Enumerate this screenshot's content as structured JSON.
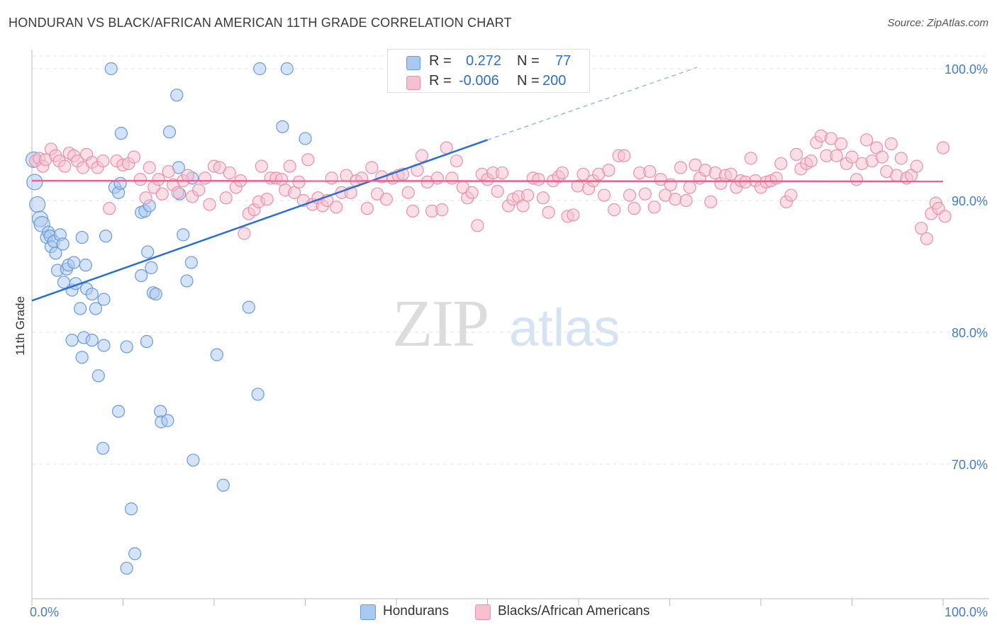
{
  "title": "HONDURAN VS BLACK/AFRICAN AMERICAN 11TH GRADE CORRELATION CHART",
  "source": "Source: ZipAtlas.com",
  "watermark": {
    "zip": "ZIP",
    "atlas": "atlas"
  },
  "legend": {
    "rows": [
      {
        "r_label": "R =",
        "r_value": "0.272",
        "n_label": "N =",
        "n_value": "77",
        "color": "#aac8f0",
        "border": "#6a9bd8"
      },
      {
        "r_label": "R =",
        "r_value": "-0.006",
        "n_label": "N =",
        "n_value": "200",
        "color": "#f7bfd0",
        "border": "#e890ad"
      }
    ]
  },
  "bottom_legend": [
    {
      "label": "Hondurans",
      "color": "#aac8f0",
      "border": "#6a9bd8"
    },
    {
      "label": "Blacks/African Americans",
      "color": "#f7bfd0",
      "border": "#e890ad"
    }
  ],
  "chart_data": {
    "type": "scatter",
    "title": "HONDURAN VS BLACK/AFRICAN AMERICAN 11TH GRADE CORRELATION CHART",
    "xlabel": "",
    "ylabel": "11th Grade",
    "xlim": [
      0,
      100
    ],
    "ylim": [
      61,
      101
    ],
    "x_tick_labels": [
      "0.0%",
      "100.0%"
    ],
    "y_ticks": [
      70,
      80,
      90,
      100
    ],
    "y_tick_labels": [
      "70.0%",
      "80.0%",
      "90.0%",
      "100.0%"
    ],
    "grid": true,
    "series": [
      {
        "name": "Hondurans",
        "color": "#aac8f0",
        "stroke": "#6a9bd8",
        "trend": {
          "x": [
            0,
            50
          ],
          "y": [
            82.4,
            94.6
          ],
          "dashed_to": [
            73,
            100.1
          ],
          "color": "#2a6fd0"
        },
        "points": [
          [
            0.2,
            93.1
          ],
          [
            0.3,
            91.4
          ],
          [
            0.6,
            89.7
          ],
          [
            0.9,
            88.6
          ],
          [
            1.1,
            88.2
          ],
          [
            1.6,
            87.2
          ],
          [
            1.8,
            87.6
          ],
          [
            2.0,
            87.3
          ],
          [
            2.1,
            86.5
          ],
          [
            2.4,
            86.9
          ],
          [
            2.6,
            86.0
          ],
          [
            3.1,
            87.4
          ],
          [
            3.4,
            86.7
          ],
          [
            2.8,
            84.7
          ],
          [
            3.8,
            84.8
          ],
          [
            4.0,
            85.1
          ],
          [
            4.6,
            85.3
          ],
          [
            4.4,
            83.2
          ],
          [
            3.5,
            83.8
          ],
          [
            4.8,
            83.7
          ],
          [
            6.0,
            83.3
          ],
          [
            5.5,
            87.2
          ],
          [
            5.9,
            85.1
          ],
          [
            5.3,
            81.8
          ],
          [
            7.0,
            81.8
          ],
          [
            7.9,
            82.5
          ],
          [
            6.6,
            82.9
          ],
          [
            8.1,
            87.3
          ],
          [
            9.1,
            91.0
          ],
          [
            9.5,
            90.6
          ],
          [
            9.7,
            91.3
          ],
          [
            9.8,
            95.1
          ],
          [
            8.7,
            100.0
          ],
          [
            12.0,
            89.1
          ],
          [
            12.4,
            89.2
          ],
          [
            12.9,
            89.6
          ],
          [
            12.7,
            86.1
          ],
          [
            12.0,
            84.3
          ],
          [
            13.1,
            84.9
          ],
          [
            13.3,
            83.0
          ],
          [
            13.6,
            82.9
          ],
          [
            15.1,
            95.2
          ],
          [
            15.9,
            98.0
          ],
          [
            16.1,
            92.5
          ],
          [
            16.2,
            90.5
          ],
          [
            16.6,
            87.4
          ],
          [
            17.0,
            83.9
          ],
          [
            17.5,
            85.3
          ],
          [
            17.6,
            91.7
          ],
          [
            25.0,
            100.0
          ],
          [
            28.0,
            100.0
          ],
          [
            27.5,
            95.6
          ],
          [
            30.0,
            94.7
          ],
          [
            23.8,
            81.9
          ],
          [
            24.8,
            75.3
          ],
          [
            20.3,
            78.3
          ],
          [
            4.4,
            79.4
          ],
          [
            5.7,
            79.6
          ],
          [
            6.6,
            79.4
          ],
          [
            5.5,
            78.1
          ],
          [
            7.9,
            79.0
          ],
          [
            10.4,
            78.9
          ],
          [
            12.6,
            79.3
          ],
          [
            7.3,
            76.7
          ],
          [
            9.5,
            74.0
          ],
          [
            14.1,
            74.0
          ],
          [
            14.2,
            73.2
          ],
          [
            14.9,
            73.3
          ],
          [
            7.8,
            71.2
          ],
          [
            17.7,
            70.3
          ],
          [
            21.0,
            68.4
          ],
          [
            10.9,
            66.6
          ],
          [
            11.3,
            63.2
          ],
          [
            10.4,
            62.1
          ]
        ]
      },
      {
        "name": "Blacks/African Americans",
        "color": "#f7bfd0",
        "stroke": "#e890ad",
        "trend": {
          "x": [
            0,
            100
          ],
          "y": [
            91.5,
            91.45
          ],
          "color": "#e8628e"
        },
        "points": [
          [
            0.4,
            93.0
          ],
          [
            0.8,
            93.2
          ],
          [
            1.2,
            92.6
          ],
          [
            1.5,
            93.1
          ],
          [
            2.1,
            93.9
          ],
          [
            2.6,
            93.4
          ],
          [
            3.0,
            93.0
          ],
          [
            3.6,
            92.6
          ],
          [
            4.1,
            93.6
          ],
          [
            4.6,
            93.4
          ],
          [
            5.0,
            93.0
          ],
          [
            5.6,
            92.5
          ],
          [
            6.0,
            93.5
          ],
          [
            6.6,
            92.9
          ],
          [
            7.2,
            92.5
          ],
          [
            7.8,
            93.0
          ],
          [
            8.5,
            89.4
          ],
          [
            9.3,
            93.0
          ],
          [
            10.0,
            92.7
          ],
          [
            10.6,
            92.8
          ],
          [
            11.2,
            93.3
          ],
          [
            11.9,
            91.6
          ],
          [
            12.5,
            90.2
          ],
          [
            12.9,
            92.5
          ],
          [
            13.4,
            91.0
          ],
          [
            13.9,
            91.6
          ],
          [
            14.3,
            90.5
          ],
          [
            15.0,
            92.2
          ],
          [
            15.5,
            91.2
          ],
          [
            16.0,
            90.6
          ],
          [
            16.6,
            91.5
          ],
          [
            17.1,
            91.9
          ],
          [
            17.6,
            90.3
          ],
          [
            18.3,
            90.8
          ],
          [
            19.0,
            91.7
          ],
          [
            19.5,
            89.7
          ],
          [
            20.0,
            92.6
          ],
          [
            20.6,
            92.5
          ],
          [
            21.3,
            90.2
          ],
          [
            21.7,
            92.1
          ],
          [
            22.4,
            91.0
          ],
          [
            22.9,
            91.5
          ],
          [
            23.3,
            87.5
          ],
          [
            23.8,
            89.0
          ],
          [
            24.4,
            89.3
          ],
          [
            24.9,
            89.9
          ],
          [
            25.2,
            92.6
          ],
          [
            25.8,
            90.1
          ],
          [
            26.2,
            91.7
          ],
          [
            26.8,
            91.7
          ],
          [
            27.4,
            91.6
          ],
          [
            27.8,
            90.8
          ],
          [
            28.3,
            92.6
          ],
          [
            28.8,
            90.6
          ],
          [
            29.3,
            91.4
          ],
          [
            29.8,
            90.0
          ],
          [
            30.3,
            93.1
          ],
          [
            30.8,
            89.7
          ],
          [
            31.4,
            90.2
          ],
          [
            31.9,
            89.6
          ],
          [
            32.4,
            90.0
          ],
          [
            32.9,
            91.7
          ],
          [
            33.4,
            89.5
          ],
          [
            34.0,
            90.6
          ],
          [
            34.5,
            91.9
          ],
          [
            35.0,
            90.6
          ],
          [
            35.6,
            91.5
          ],
          [
            36.2,
            91.7
          ],
          [
            36.8,
            89.4
          ],
          [
            37.3,
            92.5
          ],
          [
            37.9,
            90.5
          ],
          [
            38.4,
            91.8
          ],
          [
            38.9,
            90.1
          ],
          [
            39.6,
            91.7
          ],
          [
            40.2,
            91.9
          ],
          [
            40.7,
            92.0
          ],
          [
            41.3,
            90.6
          ],
          [
            41.8,
            89.2
          ],
          [
            42.3,
            92.3
          ],
          [
            42.8,
            93.4
          ],
          [
            43.4,
            91.4
          ],
          [
            43.9,
            89.2
          ],
          [
            44.5,
            91.7
          ],
          [
            45.0,
            89.3
          ],
          [
            45.5,
            94.0
          ],
          [
            46.1,
            91.7
          ],
          [
            46.6,
            93.0
          ],
          [
            47.3,
            91.0
          ],
          [
            47.8,
            90.2
          ],
          [
            48.3,
            90.6
          ],
          [
            48.9,
            88.1
          ],
          [
            49.4,
            92.0
          ],
          [
            50.0,
            91.6
          ],
          [
            50.6,
            92.1
          ],
          [
            51.1,
            90.7
          ],
          [
            51.6,
            92.1
          ],
          [
            52.3,
            89.6
          ],
          [
            52.8,
            90.1
          ],
          [
            53.4,
            90.3
          ],
          [
            53.9,
            89.6
          ],
          [
            54.4,
            90.4
          ],
          [
            55.0,
            91.7
          ],
          [
            55.6,
            91.6
          ],
          [
            56.1,
            90.2
          ],
          [
            56.7,
            89.1
          ],
          [
            57.2,
            91.5
          ],
          [
            57.8,
            91.8
          ],
          [
            58.2,
            92.1
          ],
          [
            58.8,
            88.8
          ],
          [
            59.4,
            88.9
          ],
          [
            59.9,
            91.1
          ],
          [
            60.5,
            92.0
          ],
          [
            61.1,
            90.9
          ],
          [
            61.6,
            91.5
          ],
          [
            62.2,
            92.0
          ],
          [
            62.8,
            90.4
          ],
          [
            63.3,
            92.3
          ],
          [
            63.9,
            89.3
          ],
          [
            64.4,
            93.4
          ],
          [
            65.0,
            93.4
          ],
          [
            65.6,
            90.4
          ],
          [
            66.1,
            89.4
          ],
          [
            66.7,
            92.1
          ],
          [
            67.3,
            90.5
          ],
          [
            67.8,
            92.2
          ],
          [
            68.3,
            89.5
          ],
          [
            69.0,
            91.6
          ],
          [
            69.5,
            90.4
          ],
          [
            70.1,
            91.2
          ],
          [
            70.6,
            90.1
          ],
          [
            71.2,
            92.5
          ],
          [
            71.8,
            90.0
          ],
          [
            72.2,
            91.0
          ],
          [
            72.8,
            92.7
          ],
          [
            73.3,
            91.7
          ],
          [
            73.9,
            92.3
          ],
          [
            74.5,
            89.9
          ],
          [
            75.0,
            92.1
          ],
          [
            75.6,
            91.3
          ],
          [
            76.1,
            91.9
          ],
          [
            76.7,
            92.0
          ],
          [
            77.3,
            91.0
          ],
          [
            77.8,
            91.5
          ],
          [
            78.3,
            91.4
          ],
          [
            78.9,
            93.2
          ],
          [
            79.4,
            91.5
          ],
          [
            80.0,
            91.0
          ],
          [
            80.6,
            91.4
          ],
          [
            81.1,
            91.5
          ],
          [
            81.7,
            91.7
          ],
          [
            82.2,
            92.8
          ],
          [
            82.8,
            89.9
          ],
          [
            83.3,
            90.4
          ],
          [
            83.9,
            93.5
          ],
          [
            84.4,
            92.4
          ],
          [
            85.0,
            92.8
          ],
          [
            85.5,
            93.0
          ],
          [
            86.1,
            94.4
          ],
          [
            86.6,
            94.9
          ],
          [
            87.2,
            93.4
          ],
          [
            87.7,
            94.7
          ],
          [
            88.3,
            93.4
          ],
          [
            88.8,
            94.3
          ],
          [
            89.4,
            92.8
          ],
          [
            90.0,
            93.3
          ],
          [
            90.5,
            91.6
          ],
          [
            91.1,
            92.8
          ],
          [
            91.6,
            94.6
          ],
          [
            92.2,
            93.0
          ],
          [
            92.7,
            94.0
          ],
          [
            93.3,
            93.3
          ],
          [
            93.8,
            92.2
          ],
          [
            94.3,
            94.3
          ],
          [
            94.9,
            91.9
          ],
          [
            95.4,
            93.2
          ],
          [
            96.0,
            91.7
          ],
          [
            96.5,
            91.9
          ],
          [
            97.1,
            92.6
          ],
          [
            97.6,
            87.9
          ],
          [
            98.2,
            87.1
          ],
          [
            98.7,
            89.0
          ],
          [
            99.2,
            89.8
          ],
          [
            99.5,
            89.4
          ],
          [
            100.0,
            94.0
          ],
          [
            100.2,
            88.8
          ]
        ]
      }
    ]
  }
}
